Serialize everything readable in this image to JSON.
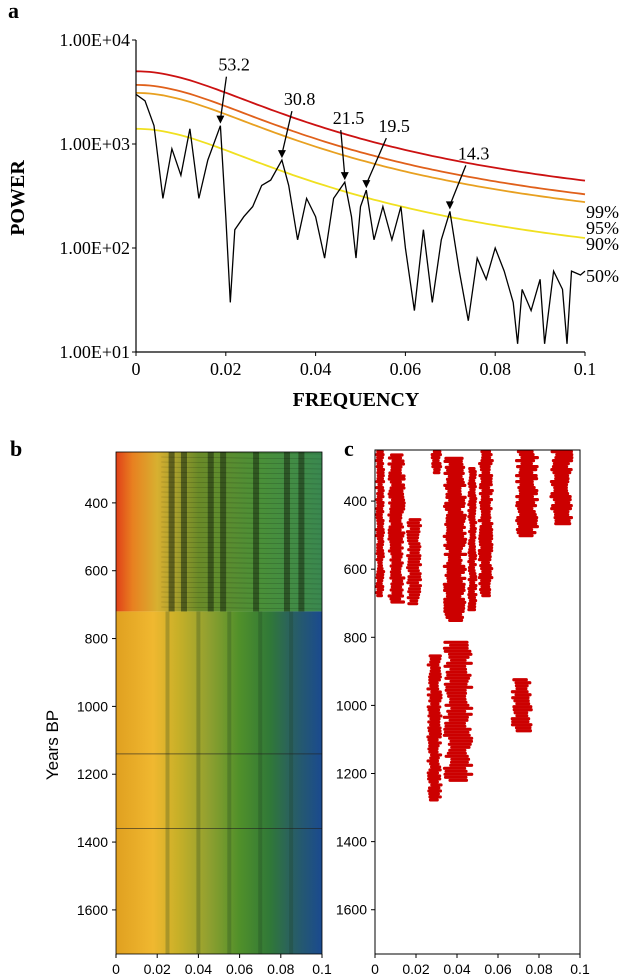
{
  "chart_data": [
    {
      "panel": "a",
      "type": "line",
      "xlabel": "FREQUENCY",
      "ylabel": "POWER",
      "xlim": [
        0,
        0.1
      ],
      "ylim": [
        10,
        10000
      ],
      "yscale": "log",
      "xticks": [
        0,
        0.02,
        0.04,
        0.06,
        0.08,
        0.1
      ],
      "xtick_labels": [
        "0",
        "0.02",
        "0.04",
        "0.06",
        "0.08",
        "0.1"
      ],
      "yticks": [
        10,
        100,
        1000,
        10000
      ],
      "ytick_labels": [
        "1.00E+01",
        "1.00E+02",
        "1.00E+03",
        "1.00E+04"
      ],
      "confidence_lines": [
        {
          "label": "99%",
          "color": "#cc1111",
          "p0": 5000,
          "pinf": 160,
          "fc": 0.025
        },
        {
          "label": "95%",
          "color": "#e0601a",
          "p0": 3700,
          "pinf": 118,
          "fc": 0.025
        },
        {
          "label": "90%",
          "color": "#e8a020",
          "p0": 3100,
          "pinf": 100,
          "fc": 0.025
        },
        {
          "label": "50%",
          "color": "#f0e020",
          "p0": 1400,
          "pinf": 45,
          "fc": 0.025
        }
      ],
      "annotations": [
        {
          "text": "53.2",
          "x": 0.0188,
          "y": 1500
        },
        {
          "text": "30.8",
          "x": 0.0325,
          "y": 700
        },
        {
          "text": "21.5",
          "x": 0.0465,
          "y": 430
        },
        {
          "text": "19.5",
          "x": 0.0513,
          "y": 360
        },
        {
          "text": "14.3",
          "x": 0.0699,
          "y": 225
        }
      ],
      "spectrum": [
        [
          0,
          3000
        ],
        [
          0.002,
          2600
        ],
        [
          0.004,
          1500
        ],
        [
          0.006,
          300
        ],
        [
          0.008,
          900
        ],
        [
          0.01,
          500
        ],
        [
          0.012,
          1400
        ],
        [
          0.014,
          300
        ],
        [
          0.016,
          700
        ],
        [
          0.0188,
          1500
        ],
        [
          0.02,
          200
        ],
        [
          0.021,
          30
        ],
        [
          0.022,
          150
        ],
        [
          0.024,
          200
        ],
        [
          0.026,
          250
        ],
        [
          0.028,
          400
        ],
        [
          0.03,
          450
        ],
        [
          0.0325,
          700
        ],
        [
          0.034,
          400
        ],
        [
          0.036,
          120
        ],
        [
          0.038,
          300
        ],
        [
          0.04,
          200
        ],
        [
          0.042,
          80
        ],
        [
          0.044,
          300
        ],
        [
          0.0465,
          430
        ],
        [
          0.048,
          200
        ],
        [
          0.049,
          80
        ],
        [
          0.05,
          250
        ],
        [
          0.0513,
          360
        ],
        [
          0.053,
          120
        ],
        [
          0.055,
          250
        ],
        [
          0.057,
          120
        ],
        [
          0.059,
          250
        ],
        [
          0.06,
          100
        ],
        [
          0.062,
          25
        ],
        [
          0.064,
          150
        ],
        [
          0.066,
          30
        ],
        [
          0.068,
          120
        ],
        [
          0.0699,
          225
        ],
        [
          0.072,
          60
        ],
        [
          0.074,
          20
        ],
        [
          0.076,
          80
        ],
        [
          0.078,
          50
        ],
        [
          0.08,
          100
        ],
        [
          0.082,
          60
        ],
        [
          0.084,
          30
        ],
        [
          0.085,
          12
        ],
        [
          0.086,
          40
        ],
        [
          0.088,
          25
        ],
        [
          0.09,
          50
        ],
        [
          0.091,
          12
        ],
        [
          0.093,
          60
        ],
        [
          0.095,
          40
        ],
        [
          0.096,
          12
        ],
        [
          0.097,
          60
        ],
        [
          0.099,
          55
        ],
        [
          0.1,
          60
        ]
      ]
    },
    {
      "panel": "b",
      "type": "heatmap",
      "ylabel": "Years BP",
      "xlim": [
        0,
        0.1
      ],
      "ylim": [
        1730,
        250
      ],
      "xticks": [
        0,
        0.02,
        0.04,
        0.06,
        0.08,
        0.1
      ],
      "xtick_labels": [
        "0",
        "0.02",
        "0.04",
        "0.06",
        "0.08",
        "0.1"
      ],
      "yticks": [
        400,
        600,
        800,
        1000,
        1200,
        1400,
        1600
      ],
      "ytick_labels": [
        "400",
        "600",
        "800",
        "1000",
        "1200",
        "1400",
        "1600"
      ]
    },
    {
      "panel": "c",
      "type": "scatter",
      "color": "#cc0000",
      "xlim": [
        0,
        0.1
      ],
      "ylim": [
        1730,
        250
      ],
      "xticks": [
        0,
        0.02,
        0.04,
        0.06,
        0.08,
        0.1
      ],
      "xtick_labels": [
        "0",
        "0.02",
        "0.04",
        "0.06",
        "0.08",
        "0.1"
      ],
      "yticks": [
        400,
        600,
        800,
        1000,
        1200,
        1400,
        1600
      ],
      "ytick_labels": [
        "400",
        "600",
        "800",
        "1000",
        "1200",
        "1400",
        "1600"
      ],
      "significant_regions": [
        {
          "x0": 0.0,
          "x1": 0.005,
          "y0": 250,
          "y1": 680
        },
        {
          "x0": 0.006,
          "x1": 0.015,
          "y0": 260,
          "y1": 700
        },
        {
          "x0": 0.015,
          "x1": 0.023,
          "y0": 450,
          "y1": 700
        },
        {
          "x0": 0.027,
          "x1": 0.033,
          "y0": 250,
          "y1": 320
        },
        {
          "x0": 0.033,
          "x1": 0.045,
          "y0": 270,
          "y1": 750
        },
        {
          "x0": 0.045,
          "x1": 0.05,
          "y0": 300,
          "y1": 720
        },
        {
          "x0": 0.05,
          "x1": 0.058,
          "y0": 250,
          "y1": 680
        },
        {
          "x0": 0.068,
          "x1": 0.08,
          "y0": 250,
          "y1": 500
        },
        {
          "x0": 0.085,
          "x1": 0.097,
          "y0": 250,
          "y1": 470
        },
        {
          "x0": 0.025,
          "x1": 0.033,
          "y0": 850,
          "y1": 1280
        },
        {
          "x0": 0.033,
          "x1": 0.048,
          "y0": 810,
          "y1": 1220
        },
        {
          "x0": 0.066,
          "x1": 0.077,
          "y0": 920,
          "y1": 1070
        }
      ]
    }
  ],
  "panel_labels": {
    "a": "a",
    "b": "b",
    "c": "c"
  },
  "colors": {
    "spectrum": "#000000",
    "significant": "#cc0000"
  }
}
